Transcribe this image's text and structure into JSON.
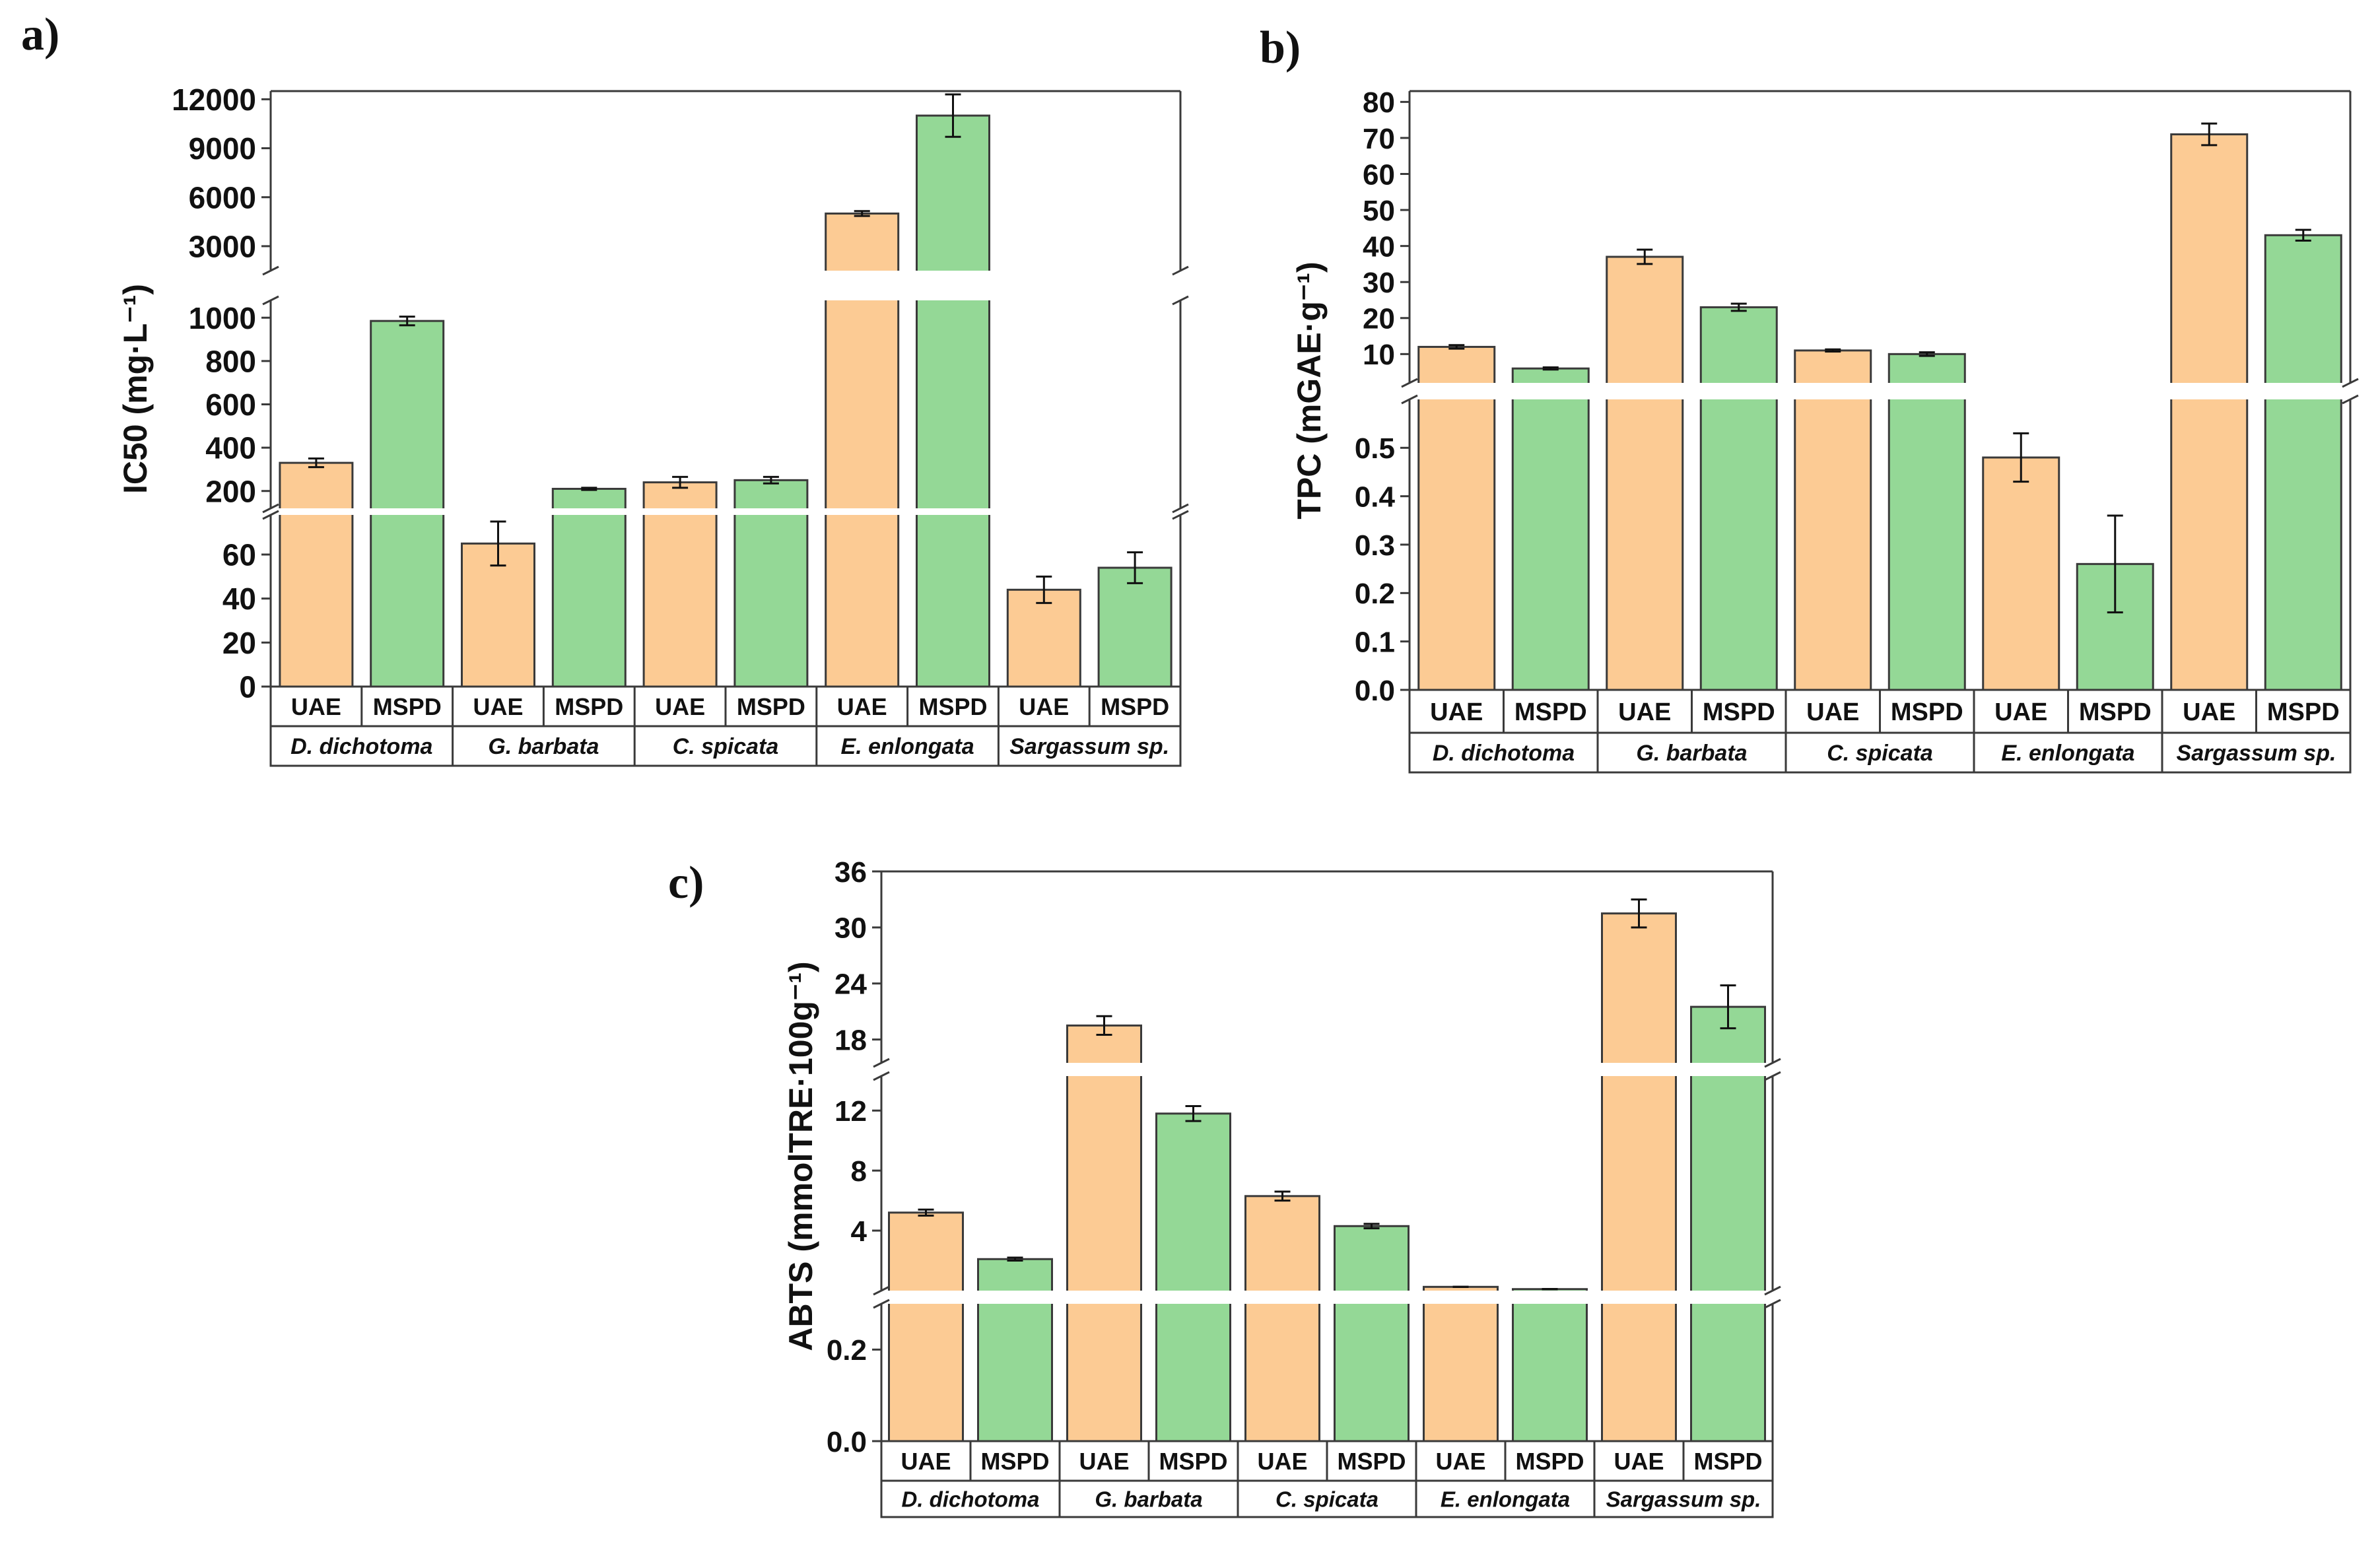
{
  "colors": {
    "uae": "#FCCB94",
    "mspd": "#94D896",
    "frame": "#3a3a3a",
    "error_bar": "#111111"
  },
  "chart_data": [
    {
      "panel": "a)",
      "type": "bar",
      "ylabel": "IC50 (mg·L⁻¹)",
      "method_labels": [
        "UAE",
        "MSPD"
      ],
      "species_labels": [
        "D. dichotoma",
        "G. barbata",
        "C. spicata",
        "E. enlongata",
        "Sargassum sp."
      ],
      "species_italic": [
        true,
        false,
        true,
        true,
        true
      ],
      "segments": [
        {
          "range": [
            0,
            78
          ],
          "ticks": [
            0,
            20,
            40,
            60
          ]
        },
        {
          "range": [
            120,
            1080
          ],
          "ticks": [
            200,
            400,
            600,
            800,
            1000
          ]
        },
        {
          "range": [
            1500,
            12500
          ],
          "ticks": [
            3000,
            6000,
            9000,
            12000
          ]
        }
      ],
      "series": [
        {
          "name": "UAE",
          "values": [
            330,
            65,
            240,
            5000,
            44
          ],
          "errors": [
            20,
            10,
            25,
            150,
            6
          ]
        },
        {
          "name": "MSPD",
          "values": [
            985,
            210,
            250,
            11000,
            54
          ],
          "errors": [
            20,
            5,
            15,
            1300,
            7
          ]
        }
      ]
    },
    {
      "panel": "b)",
      "type": "bar",
      "ylabel": "TPC (mGAE·g⁻¹)",
      "method_labels": [
        "UAE",
        "MSPD"
      ],
      "species_labels": [
        "D. dichotoma",
        "G. barbata",
        "C. spicata",
        "E. enlongata",
        "Sargassum sp."
      ],
      "species_italic": [
        true,
        false,
        true,
        true,
        true
      ],
      "segments": [
        {
          "range": [
            0,
            0.6
          ],
          "ticks": [
            "0.0",
            "0.1",
            "0.2",
            "0.3",
            "0.4",
            "0.5"
          ]
        },
        {
          "range": [
            2,
            83
          ],
          "ticks": [
            10,
            20,
            30,
            40,
            50,
            60,
            70,
            80
          ]
        }
      ],
      "series": [
        {
          "name": "UAE",
          "values": [
            12,
            37,
            11,
            0.48,
            71
          ],
          "errors": [
            0.5,
            2,
            0.3,
            0.05,
            3
          ]
        },
        {
          "name": "MSPD",
          "values": [
            6,
            23,
            10,
            0.26,
            43
          ],
          "errors": [
            0.3,
            1,
            0.5,
            0.1,
            1.5
          ]
        }
      ]
    },
    {
      "panel": "c)",
      "type": "bar",
      "ylabel": "ABTS (mmolTRE·100g⁻¹)",
      "method_labels": [
        "UAE",
        "MSPD"
      ],
      "species_labels": [
        "D. dichotoma",
        "G. barbata",
        "C. spicata",
        "E. enlongata",
        "Sargassum sp."
      ],
      "species_italic": [
        true,
        false,
        true,
        true,
        true
      ],
      "segments": [
        {
          "range": [
            0,
            0.3
          ],
          "ticks": [
            "0.0",
            "0.2"
          ]
        },
        {
          "range": [
            0,
            14.3
          ],
          "ticks": [
            4,
            8,
            12
          ]
        },
        {
          "range": [
            15.5,
            36
          ],
          "ticks": [
            18,
            24,
            30,
            36
          ]
        }
      ],
      "series": [
        {
          "name": "UAE",
          "values": [
            5.2,
            19.5,
            6.3,
            0.25,
            31.5
          ],
          "errors": [
            0.2,
            1,
            0.3,
            0.01,
            1.5
          ]
        },
        {
          "name": "MSPD",
          "values": [
            2.1,
            11.8,
            4.3,
            0.1,
            21.5
          ],
          "errors": [
            0.1,
            0.5,
            0.15,
            0.01,
            2.3
          ]
        }
      ]
    }
  ]
}
